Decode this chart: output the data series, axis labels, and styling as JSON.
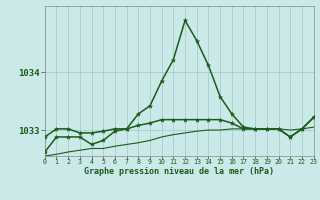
{
  "title": "Graphe pression niveau de la mer (hPa)",
  "bg_color": "#cce9e9",
  "grid_color": "#aacccc",
  "line_color": "#1a5c1a",
  "xlim": [
    0,
    23
  ],
  "ylim": [
    1032.55,
    1035.15
  ],
  "yticks": [
    1033,
    1034
  ],
  "xticks": [
    0,
    1,
    2,
    3,
    4,
    5,
    6,
    7,
    8,
    9,
    10,
    11,
    12,
    13,
    14,
    15,
    16,
    17,
    18,
    19,
    20,
    21,
    22,
    23
  ],
  "s1": [
    1032.62,
    1032.88,
    1032.88,
    1032.88,
    1032.75,
    1032.82,
    1032.98,
    1033.02,
    1033.28,
    1033.42,
    1033.85,
    1034.22,
    1034.9,
    1034.55,
    1034.12,
    1033.58,
    1033.28,
    1033.05,
    1033.02,
    1033.02,
    1033.02,
    1032.88,
    1033.02,
    1033.22
  ],
  "s2": [
    1032.88,
    1033.02,
    1033.02,
    1032.95,
    1032.95,
    1032.98,
    1033.02,
    1033.02,
    1033.08,
    1033.12,
    1033.18,
    1033.18,
    1033.18,
    1033.18,
    1033.18,
    1033.18,
    1033.12,
    1033.02,
    1033.02,
    1033.02,
    1033.02,
    1032.88,
    1033.02,
    1033.22
  ],
  "s3": [
    1032.55,
    1032.58,
    1032.62,
    1032.65,
    1032.68,
    1032.68,
    1032.72,
    1032.75,
    1032.78,
    1032.82,
    1032.88,
    1032.92,
    1032.95,
    1032.98,
    1033.0,
    1033.0,
    1033.02,
    1033.02,
    1033.02,
    1033.02,
    1033.02,
    1033.0,
    1033.02,
    1033.05
  ]
}
